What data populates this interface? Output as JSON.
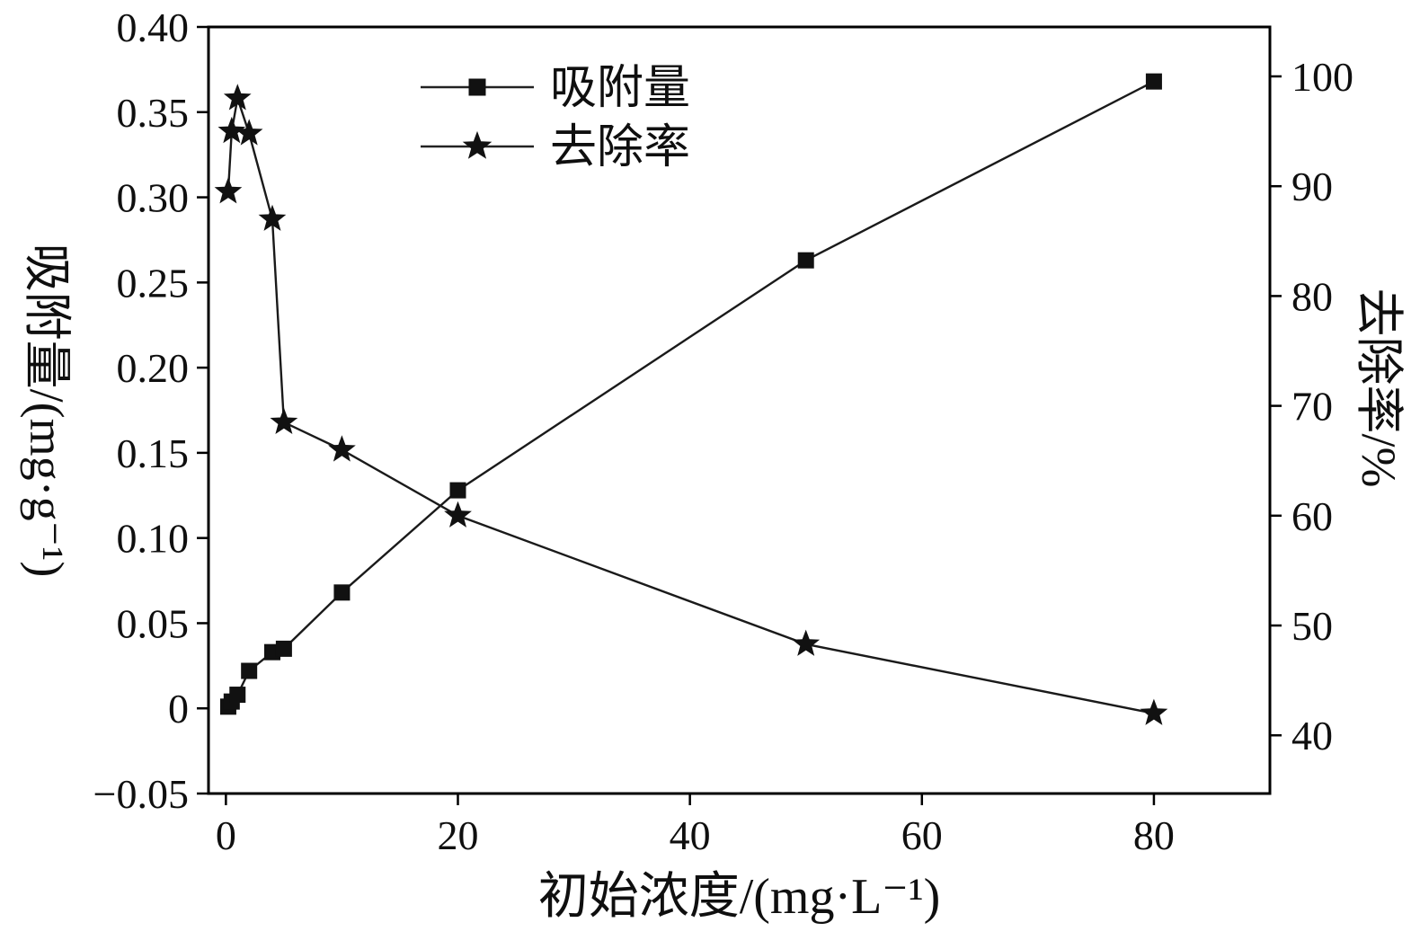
{
  "chart_data": {
    "type": "line",
    "title": "",
    "x_axis": {
      "title": "初始浓度/(mg·L⁻¹)",
      "range": [
        -1.5,
        90
      ],
      "ticks": [
        {
          "v": 0,
          "label": "0"
        },
        {
          "v": 20,
          "label": "20"
        },
        {
          "v": 40,
          "label": "40"
        },
        {
          "v": 60,
          "label": "60"
        },
        {
          "v": 80,
          "label": "80"
        }
      ]
    },
    "left_axis": {
      "title": "吸附量/(mg·g⁻¹)",
      "range": [
        -0.05,
        0.4
      ],
      "ticks": [
        {
          "v": 0.4,
          "label": "0.40"
        },
        {
          "v": 0.35,
          "label": "0.35"
        },
        {
          "v": 0.3,
          "label": "0.30"
        },
        {
          "v": 0.25,
          "label": "0.25"
        },
        {
          "v": 0.2,
          "label": "0.20"
        },
        {
          "v": 0.15,
          "label": "0.15"
        },
        {
          "v": 0.1,
          "label": "0.10"
        },
        {
          "v": 0.05,
          "label": "0.05"
        },
        {
          "v": 0,
          "label": "0"
        },
        {
          "v": -0.05,
          "label": "−0.05"
        }
      ]
    },
    "right_axis": {
      "title": "去除率/%",
      "range": [
        34.7,
        104.5
      ],
      "ticks": [
        {
          "v": 100,
          "label": "100"
        },
        {
          "v": 90,
          "label": "90"
        },
        {
          "v": 80,
          "label": "80"
        },
        {
          "v": 70,
          "label": "70"
        },
        {
          "v": 60,
          "label": "60"
        },
        {
          "v": 50,
          "label": "50"
        },
        {
          "v": 40,
          "label": "40"
        }
      ]
    },
    "series": [
      {
        "name": "吸附量",
        "axis": "left",
        "marker": "square",
        "color": "#1a1a1a",
        "x": [
          0.2,
          0.5,
          1,
          2,
          4,
          5,
          10,
          20,
          50,
          80
        ],
        "y": [
          0.001,
          0.004,
          0.008,
          0.022,
          0.033,
          0.035,
          0.068,
          0.128,
          0.263,
          0.368
        ]
      },
      {
        "name": "去除率",
        "axis": "right",
        "marker": "star",
        "color": "#1a1a1a",
        "x": [
          0.2,
          0.5,
          1,
          2,
          4,
          5,
          10,
          20,
          50,
          80
        ],
        "y": [
          89.5,
          95,
          98,
          94.8,
          87,
          68.5,
          66,
          60,
          48.3,
          42
        ]
      }
    ],
    "legend": [
      {
        "label": "吸附量",
        "marker": "square"
      },
      {
        "label": "去除率",
        "marker": "star"
      }
    ],
    "grid": false,
    "legend_position": "upper-center-inside"
  }
}
